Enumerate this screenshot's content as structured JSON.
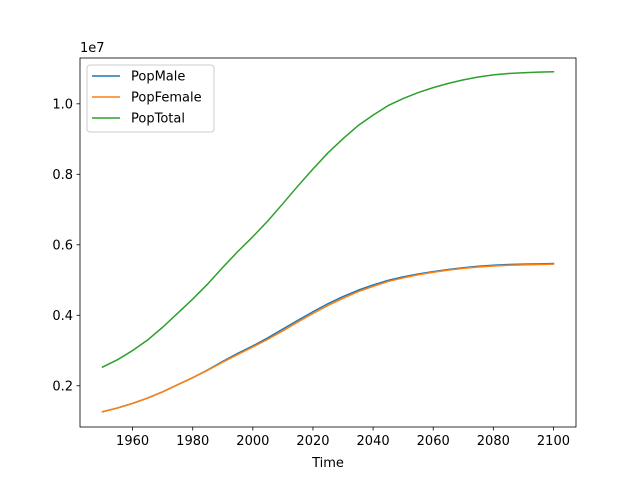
{
  "chart_data": {
    "type": "line",
    "title": "",
    "xlabel": "Time",
    "ylabel": "",
    "y_offset_text": "1e7",
    "xlim": [
      1942.5,
      2107.5
    ],
    "ylim": [
      830000,
      11300000
    ],
    "x_ticks": [
      1960,
      1980,
      2000,
      2020,
      2040,
      2060,
      2080,
      2100
    ],
    "y_ticks": [
      2000000,
      4000000,
      6000000,
      8000000,
      10000000
    ],
    "y_tick_labels": [
      "0.2",
      "0.4",
      "0.6",
      "0.8",
      "1.0"
    ],
    "x": [
      1950,
      1955,
      1960,
      1965,
      1970,
      1975,
      1980,
      1985,
      1990,
      1995,
      2000,
      2005,
      2010,
      2015,
      2020,
      2025,
      2030,
      2035,
      2040,
      2045,
      2050,
      2055,
      2060,
      2065,
      2070,
      2075,
      2080,
      2085,
      2090,
      2095,
      2100
    ],
    "series": [
      {
        "name": "PopMale",
        "color": "#1f77b4",
        "values": [
          1265000,
          1370000,
          1500000,
          1650000,
          1830000,
          2030000,
          2230000,
          2450000,
          2690000,
          2920000,
          3130000,
          3360000,
          3610000,
          3860000,
          4100000,
          4330000,
          4530000,
          4710000,
          4860000,
          4990000,
          5090000,
          5170000,
          5240000,
          5300000,
          5350000,
          5390000,
          5420000,
          5440000,
          5450000,
          5460000,
          5470000
        ]
      },
      {
        "name": "PopFemale",
        "color": "#ff7f0e",
        "values": [
          1265000,
          1370000,
          1500000,
          1650000,
          1830000,
          2030000,
          2230000,
          2440000,
          2670000,
          2890000,
          3100000,
          3320000,
          3560000,
          3810000,
          4050000,
          4280000,
          4480000,
          4670000,
          4820000,
          4960000,
          5060000,
          5150000,
          5220000,
          5280000,
          5330000,
          5370000,
          5400000,
          5420000,
          5430000,
          5440000,
          5450000
        ]
      },
      {
        "name": "PopTotal",
        "color": "#2ca02c",
        "values": [
          2530000,
          2740000,
          3000000,
          3300000,
          3660000,
          4060000,
          4460000,
          4890000,
          5360000,
          5810000,
          6230000,
          6680000,
          7170000,
          7670000,
          8150000,
          8610000,
          9010000,
          9380000,
          9680000,
          9950000,
          10150000,
          10320000,
          10460000,
          10580000,
          10680000,
          10760000,
          10820000,
          10860000,
          10880000,
          10900000,
          10910000
        ]
      }
    ]
  }
}
